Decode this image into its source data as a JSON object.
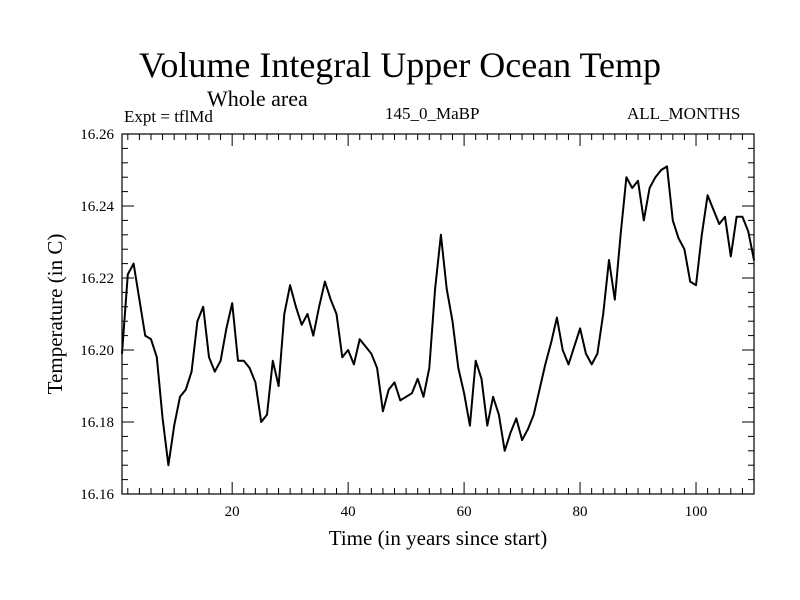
{
  "chart_data": {
    "type": "line",
    "title": "Volume Integral Upper Ocean Temp",
    "subtitle": "Whole area",
    "expt_label": "Expt = tflMd",
    "run_label": "145_0_MaBP",
    "months_label": "ALL_MONTHS",
    "xlabel": "Time (in years since start)",
    "ylabel": "Temperature (in C)",
    "xlim": [
      1,
      110
    ],
    "ylim": [
      16.16,
      16.26
    ],
    "x_ticks": [
      20,
      40,
      60,
      80,
      100
    ],
    "y_ticks": [
      "16.16",
      "16.18",
      "16.20",
      "16.22",
      "16.24",
      "16.26"
    ],
    "x": [
      1,
      2,
      3,
      4,
      5,
      6,
      7,
      8,
      9,
      10,
      11,
      12,
      13,
      14,
      15,
      16,
      17,
      18,
      19,
      20,
      21,
      22,
      23,
      24,
      25,
      26,
      27,
      28,
      29,
      30,
      31,
      32,
      33,
      34,
      35,
      36,
      37,
      38,
      39,
      40,
      41,
      42,
      43,
      44,
      45,
      46,
      47,
      48,
      49,
      50,
      51,
      52,
      53,
      54,
      55,
      56,
      57,
      58,
      59,
      60,
      61,
      62,
      63,
      64,
      65,
      66,
      67,
      68,
      69,
      70,
      71,
      72,
      73,
      74,
      75,
      76,
      77,
      78,
      79,
      80,
      81,
      82,
      83,
      84,
      85,
      86,
      87,
      88,
      89,
      90,
      91,
      92,
      93,
      94,
      95,
      96,
      97,
      98,
      99,
      100,
      101,
      102,
      103,
      104,
      105,
      106,
      107,
      108,
      109,
      110
    ],
    "series": [
      {
        "name": "Temperature",
        "color": "#000000",
        "values": [
          16.199,
          16.221,
          16.224,
          16.214,
          16.204,
          16.203,
          16.198,
          16.181,
          16.168,
          16.179,
          16.187,
          16.189,
          16.194,
          16.208,
          16.212,
          16.198,
          16.194,
          16.197,
          16.206,
          16.213,
          16.197,
          16.197,
          16.195,
          16.191,
          16.18,
          16.182,
          16.197,
          16.19,
          16.21,
          16.218,
          16.212,
          16.207,
          16.21,
          16.204,
          16.212,
          16.219,
          16.214,
          16.21,
          16.198,
          16.2,
          16.196,
          16.203,
          16.201,
          16.199,
          16.195,
          16.183,
          16.189,
          16.191,
          16.186,
          16.187,
          16.188,
          16.192,
          16.187,
          16.195,
          16.217,
          16.232,
          16.217,
          16.208,
          16.195,
          16.188,
          16.179,
          16.197,
          16.192,
          16.179,
          16.187,
          16.182,
          16.172,
          16.177,
          16.181,
          16.175,
          16.178,
          16.182,
          16.189,
          16.196,
          16.202,
          16.209,
          16.2,
          16.196,
          16.201,
          16.206,
          16.199,
          16.196,
          16.199,
          16.21,
          16.225,
          16.214,
          16.232,
          16.248,
          16.245,
          16.247,
          16.236,
          16.245,
          16.248,
          16.25,
          16.251,
          16.236,
          16.231,
          16.228,
          16.219,
          16.218,
          16.232,
          16.243,
          16.239,
          16.235,
          16.237,
          16.226,
          16.237,
          16.237,
          16.233,
          16.225
        ]
      }
    ]
  }
}
